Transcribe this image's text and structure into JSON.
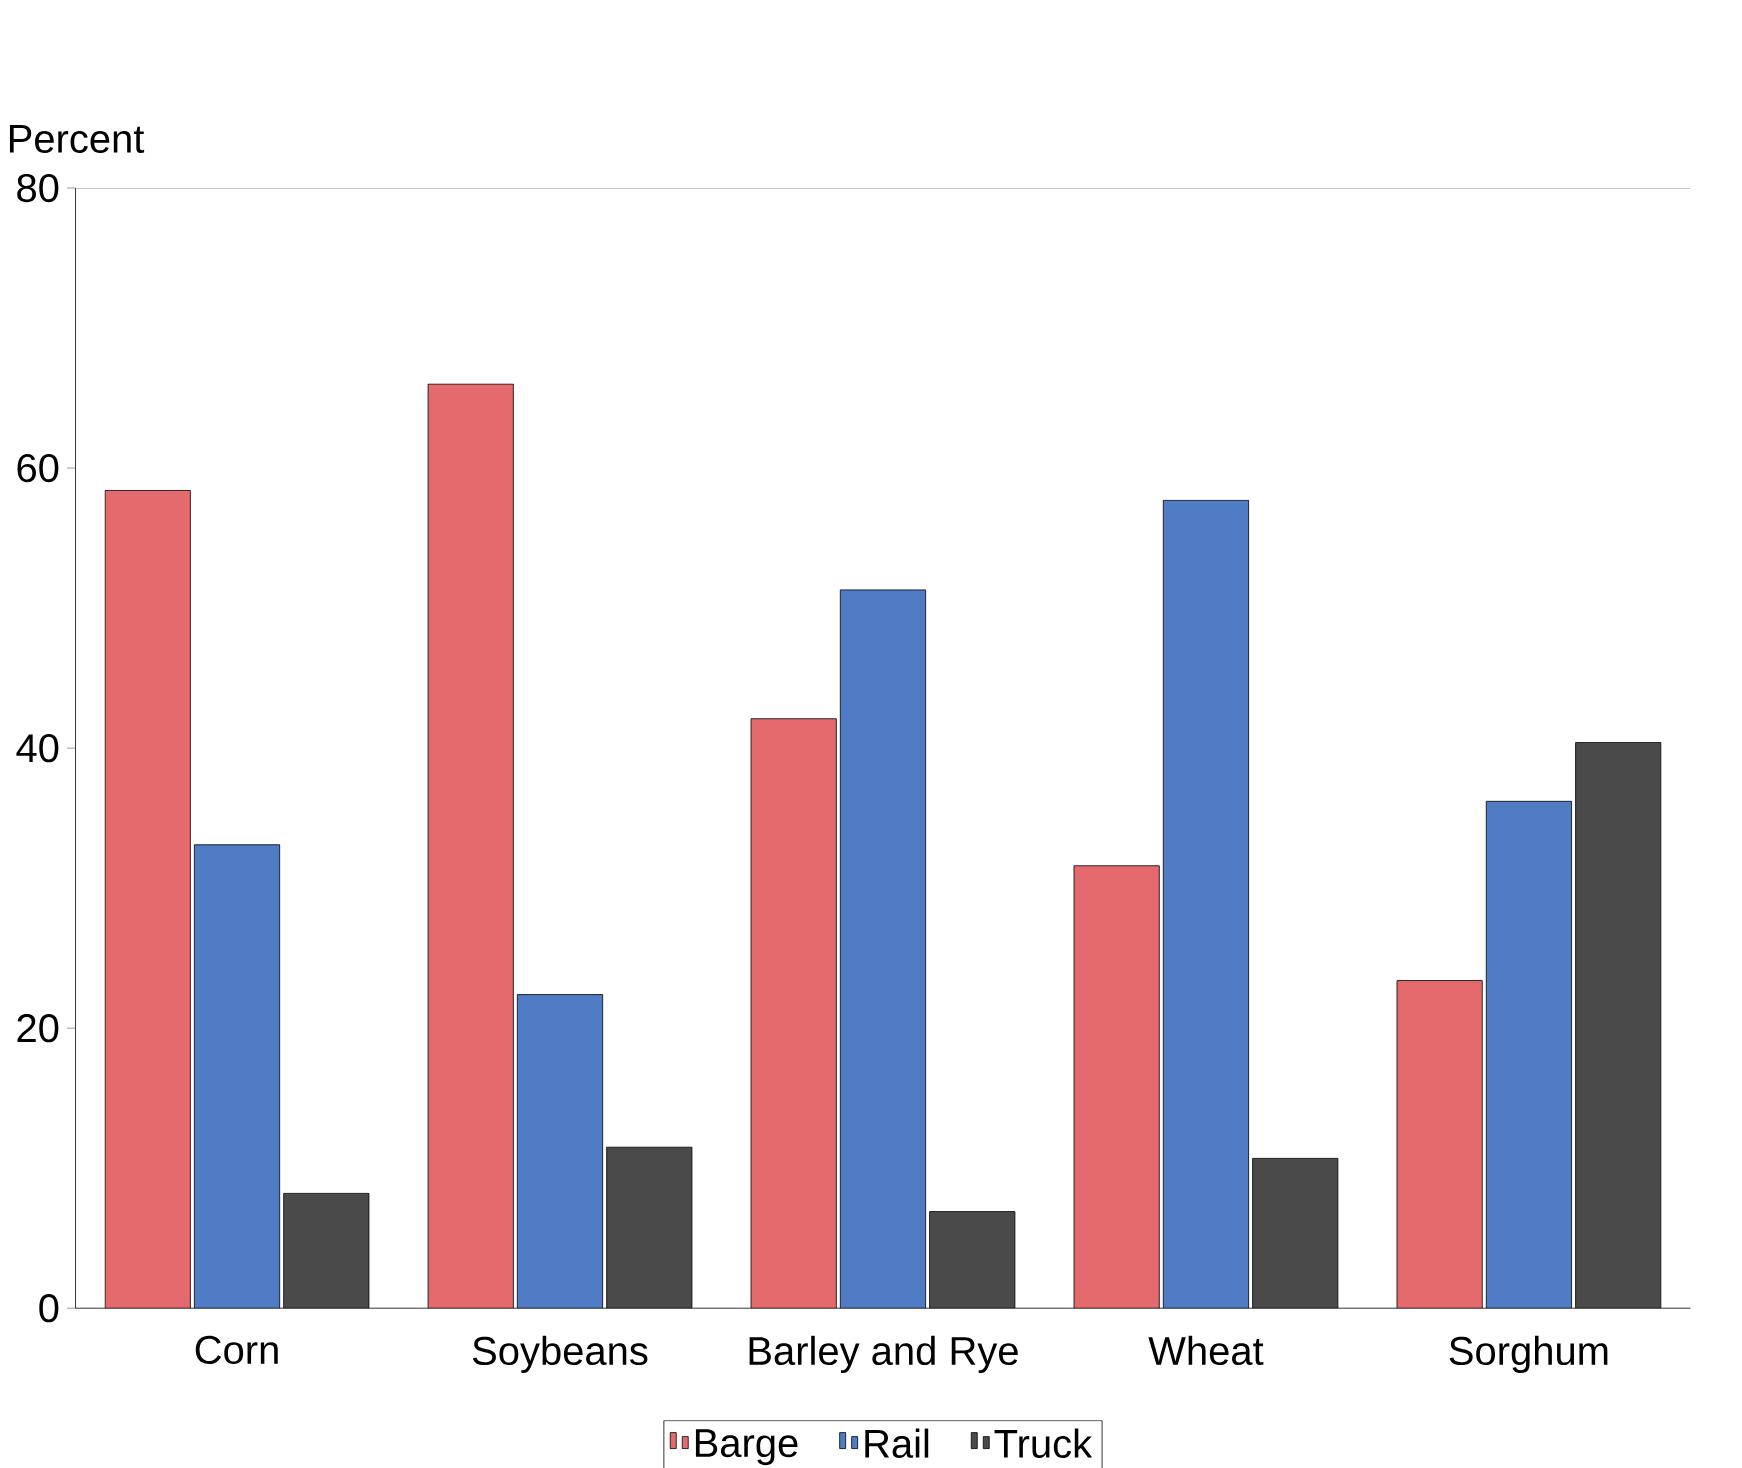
{
  "chart_data": {
    "type": "bar",
    "ylabel": "Percent",
    "categories": [
      "Corn",
      "Soybeans",
      "Barley and Rye",
      "Wheat",
      "Sorghum"
    ],
    "series": [
      {
        "name": "Barge",
        "color": "#e46a6e",
        "values": [
          58.4,
          66.0,
          42.1,
          31.6,
          23.4
        ]
      },
      {
        "name": "Rail",
        "color": "#4f7cc4",
        "values": [
          33.1,
          22.4,
          51.3,
          57.7,
          36.2
        ]
      },
      {
        "name": "Truck",
        "color": "#4a4a4a",
        "values": [
          8.2,
          11.5,
          6.9,
          10.7,
          40.4
        ]
      }
    ],
    "ylim": [
      0,
      80
    ],
    "yticks": [
      0,
      20,
      40,
      60,
      80
    ],
    "grid": false,
    "legend": "bottom"
  }
}
